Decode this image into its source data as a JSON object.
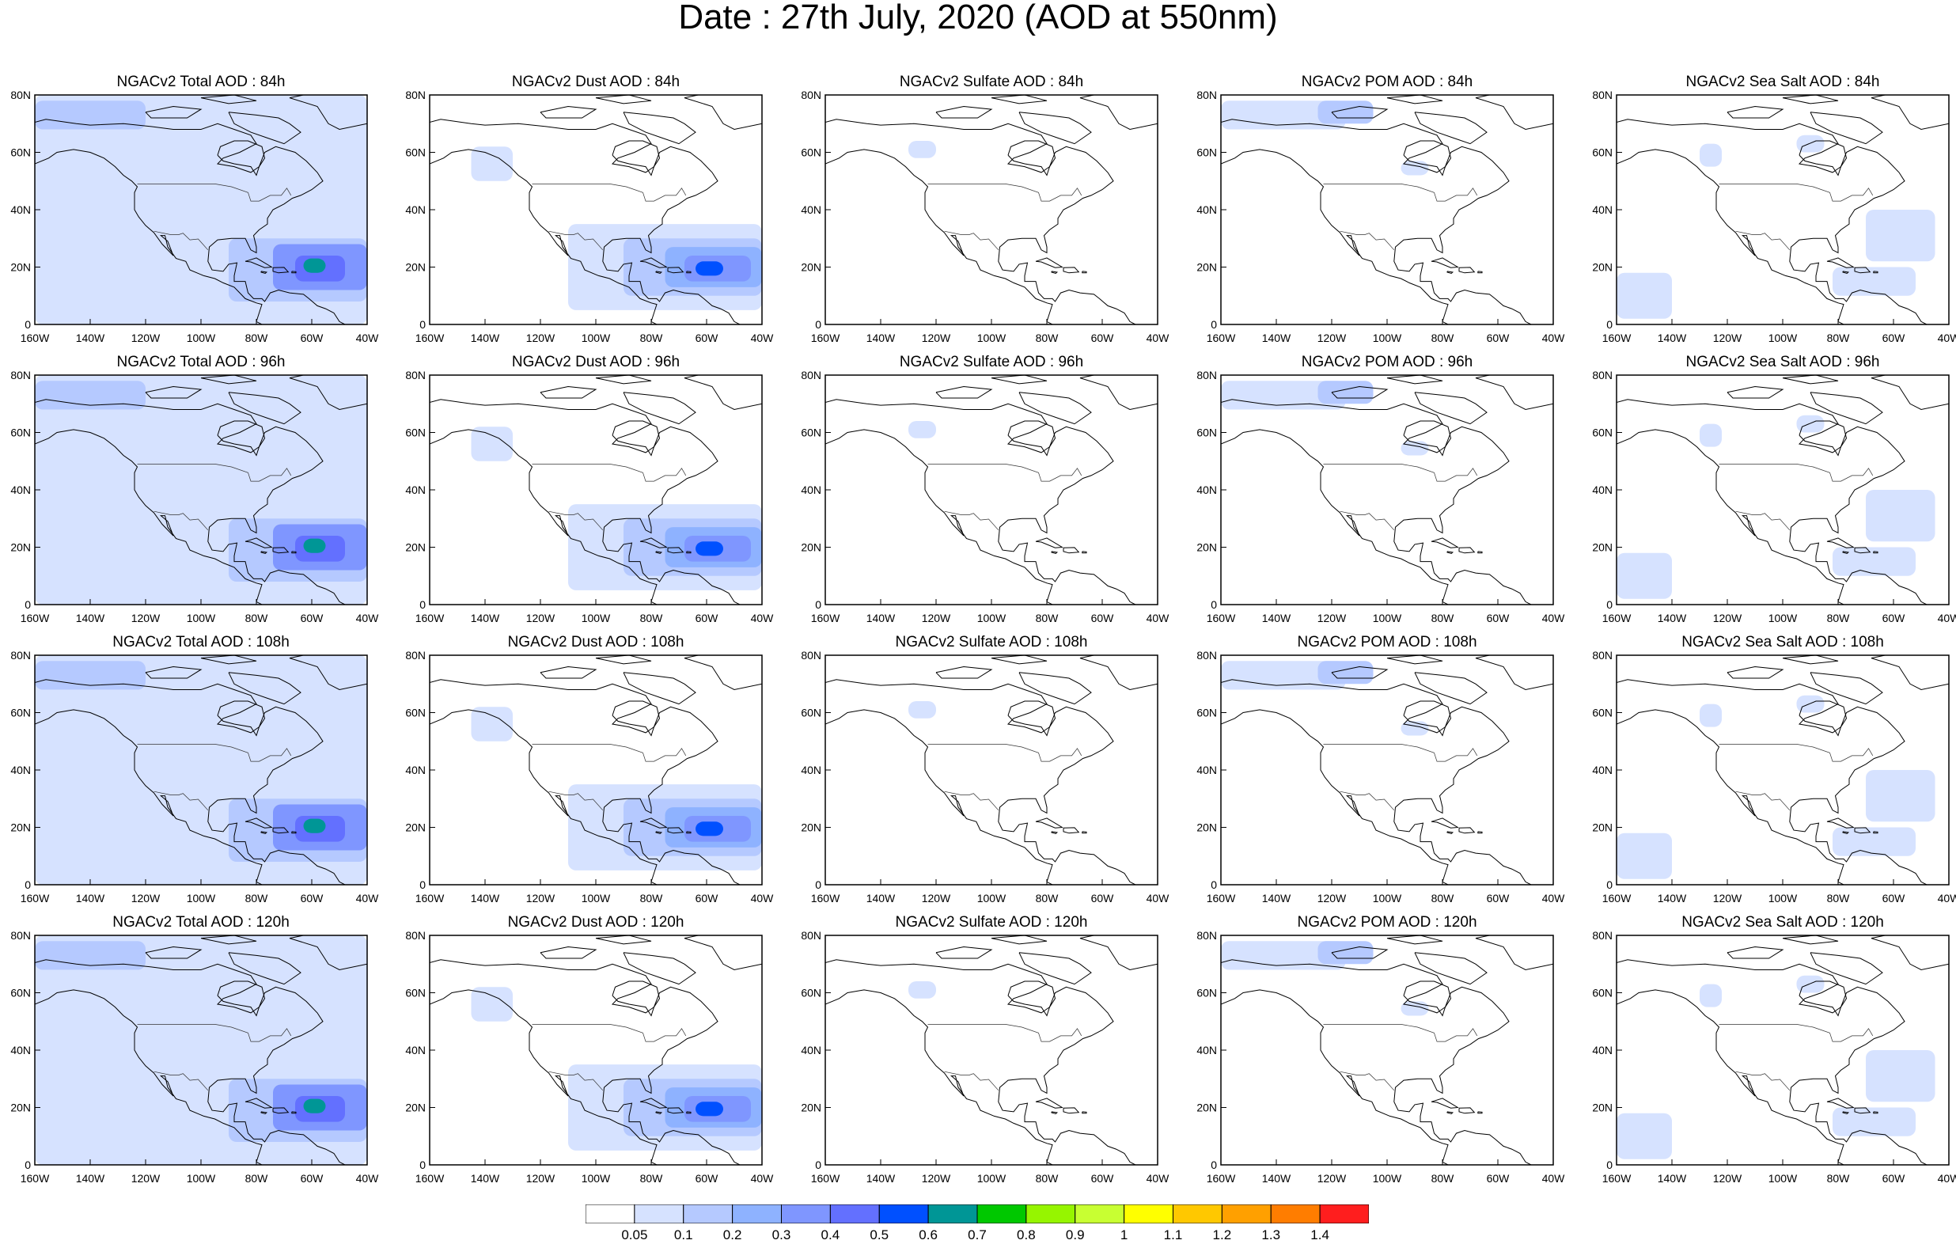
{
  "title": "Date : 27th July, 2020 (AOD at 550nm)",
  "axes": {
    "lon_ticks": [
      "160W",
      "140W",
      "120W",
      "100W",
      "80W",
      "60W",
      "40W"
    ],
    "lat_ticks": [
      "80N",
      "60N",
      "40N",
      "20N",
      "0"
    ],
    "lon_range": [
      -160,
      -40
    ],
    "lat_range": [
      0,
      80
    ]
  },
  "rows": [
    {
      "lead": "84h",
      "panels": [
        {
          "species": "total",
          "title": "NGACv2 Total AOD : 84h"
        },
        {
          "species": "dust",
          "title": "NGACv2 Dust AOD : 84h"
        },
        {
          "species": "sulfate",
          "title": "NGACv2 Sulfate AOD : 84h"
        },
        {
          "species": "pom",
          "title": "NGACv2 POM AOD : 84h"
        },
        {
          "species": "seasalt",
          "title": "NGACv2 Sea Salt AOD : 84h"
        }
      ]
    },
    {
      "lead": "96h",
      "panels": [
        {
          "species": "total",
          "title": "NGACv2 Total AOD : 96h"
        },
        {
          "species": "dust",
          "title": "NGACv2 Dust AOD : 96h"
        },
        {
          "species": "sulfate",
          "title": "NGACv2 Sulfate AOD : 96h"
        },
        {
          "species": "pom",
          "title": "NGACv2 POM AOD : 96h"
        },
        {
          "species": "seasalt",
          "title": "NGACv2 Sea Salt AOD : 96h"
        }
      ]
    },
    {
      "lead": "108h",
      "panels": [
        {
          "species": "total",
          "title": "NGACv2 Total AOD : 108h"
        },
        {
          "species": "dust",
          "title": "NGACv2 Dust AOD : 108h"
        },
        {
          "species": "sulfate",
          "title": "NGACv2 Sulfate AOD : 108h"
        },
        {
          "species": "pom",
          "title": "NGACv2 POM AOD : 108h"
        },
        {
          "species": "seasalt",
          "title": "NGACv2 Sea Salt AOD : 108h"
        }
      ]
    },
    {
      "lead": "120h",
      "panels": [
        {
          "species": "total",
          "title": "NGACv2 Total AOD : 120h"
        },
        {
          "species": "dust",
          "title": "NGACv2 Dust AOD : 120h"
        },
        {
          "species": "sulfate",
          "title": "NGACv2 Sulfate AOD : 120h"
        },
        {
          "species": "pom",
          "title": "NGACv2 POM AOD : 120h"
        },
        {
          "species": "seasalt",
          "title": "NGACv2 Sea Salt  AOD : 120h"
        }
      ]
    }
  ],
  "colorbar": {
    "colors": [
      "#ffffff",
      "#d6e2ff",
      "#b5c9ff",
      "#8eb2ff",
      "#7f96ff",
      "#6370ff",
      "#0050ff",
      "#009696",
      "#00c800",
      "#96f500",
      "#c8ff32",
      "#ffff00",
      "#ffc800",
      "#ffa000",
      "#ff7d00",
      "#ff1e1e"
    ],
    "labels": [
      "0.05",
      "0.1",
      "0.2",
      "0.3",
      "0.4",
      "0.5",
      "0.6",
      "0.7",
      "0.8",
      "0.9",
      "1",
      "1.1",
      "1.2",
      "1.3",
      "1.4"
    ]
  },
  "plumes": {
    "total": [
      {
        "lon": -160,
        "lat": 0,
        "w": 120,
        "h": 80,
        "level": 1
      },
      {
        "lon": -90,
        "lat": 8,
        "w": 50,
        "h": 22,
        "level": 2
      },
      {
        "lon": -74,
        "lat": 12,
        "w": 34,
        "h": 16,
        "level": 4
      },
      {
        "lon": -66,
        "lat": 15,
        "w": 18,
        "h": 9,
        "level": 5
      },
      {
        "lon": -63,
        "lat": 18,
        "w": 8,
        "h": 5,
        "level": 7
      },
      {
        "lon": -160,
        "lat": 68,
        "w": 40,
        "h": 10,
        "level": 2
      }
    ],
    "dust": [
      {
        "lon": -110,
        "lat": 5,
        "w": 70,
        "h": 30,
        "level": 1
      },
      {
        "lon": -90,
        "lat": 10,
        "w": 50,
        "h": 20,
        "level": 2
      },
      {
        "lon": -75,
        "lat": 13,
        "w": 35,
        "h": 14,
        "level": 3
      },
      {
        "lon": -68,
        "lat": 15,
        "w": 24,
        "h": 9,
        "level": 4
      },
      {
        "lon": -64,
        "lat": 17,
        "w": 10,
        "h": 5,
        "level": 6
      },
      {
        "lon": -145,
        "lat": 50,
        "w": 15,
        "h": 12,
        "level": 1
      }
    ],
    "sulfate": [
      {
        "lon": -130,
        "lat": 58,
        "w": 10,
        "h": 6,
        "level": 1
      }
    ],
    "pom": [
      {
        "lon": -160,
        "lat": 68,
        "w": 45,
        "h": 10,
        "level": 1
      },
      {
        "lon": -125,
        "lat": 70,
        "w": 20,
        "h": 8,
        "level": 2
      },
      {
        "lon": -95,
        "lat": 52,
        "w": 10,
        "h": 5,
        "level": 1
      }
    ],
    "seasalt": [
      {
        "lon": -160,
        "lat": 2,
        "w": 20,
        "h": 16,
        "level": 1
      },
      {
        "lon": -82,
        "lat": 10,
        "w": 30,
        "h": 10,
        "level": 1
      },
      {
        "lon": -70,
        "lat": 22,
        "w": 25,
        "h": 18,
        "level": 1
      },
      {
        "lon": -130,
        "lat": 55,
        "w": 8,
        "h": 8,
        "level": 1
      },
      {
        "lon": -95,
        "lat": 60,
        "w": 10,
        "h": 6,
        "level": 1
      }
    ]
  }
}
